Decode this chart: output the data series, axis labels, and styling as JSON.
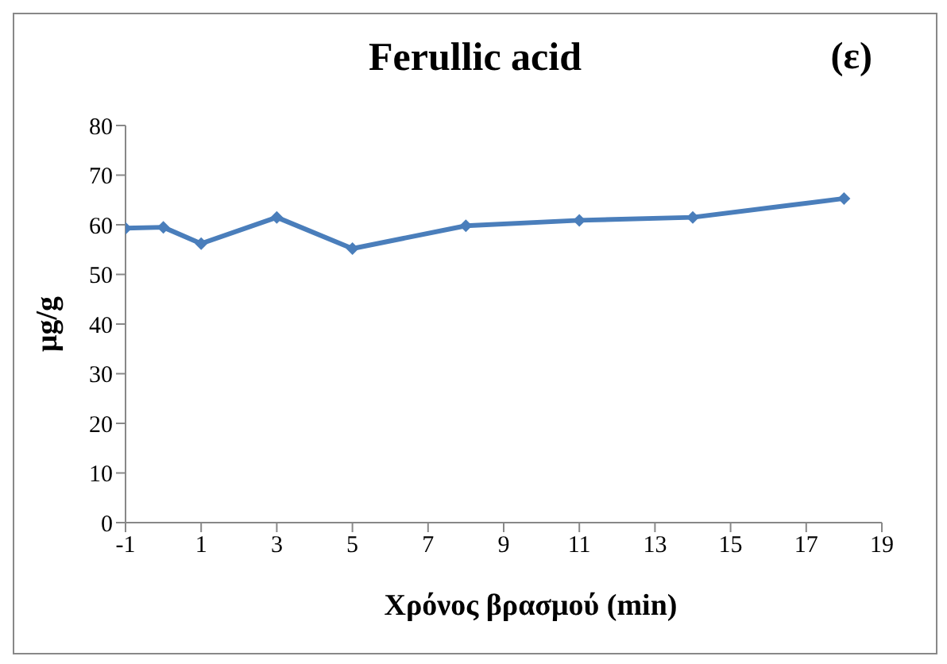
{
  "chart_data": {
    "type": "line",
    "title": "Ferullic acid",
    "annotations": [
      "(ε)"
    ],
    "xlabel": "Χρόνος βρασμού (min)",
    "ylabel": "μg/g",
    "x": [
      -1,
      0,
      1,
      3,
      5,
      8,
      11,
      14,
      18
    ],
    "series": [
      {
        "color": "#4a7ebb",
        "values": [
          59.3,
          59.5,
          56.2,
          61.5,
          55.2,
          59.8,
          60.9,
          61.5,
          65.3
        ]
      }
    ],
    "xlim": [
      -1,
      19
    ],
    "xticks": [
      -1,
      1,
      3,
      5,
      7,
      9,
      11,
      13,
      15,
      17,
      19
    ],
    "ylim": [
      0,
      80
    ],
    "yticks": [
      0,
      10,
      20,
      30,
      40,
      50,
      60,
      70,
      80
    ],
    "grid": false,
    "legend": false,
    "marker": "diamond",
    "line_style": "solid"
  }
}
